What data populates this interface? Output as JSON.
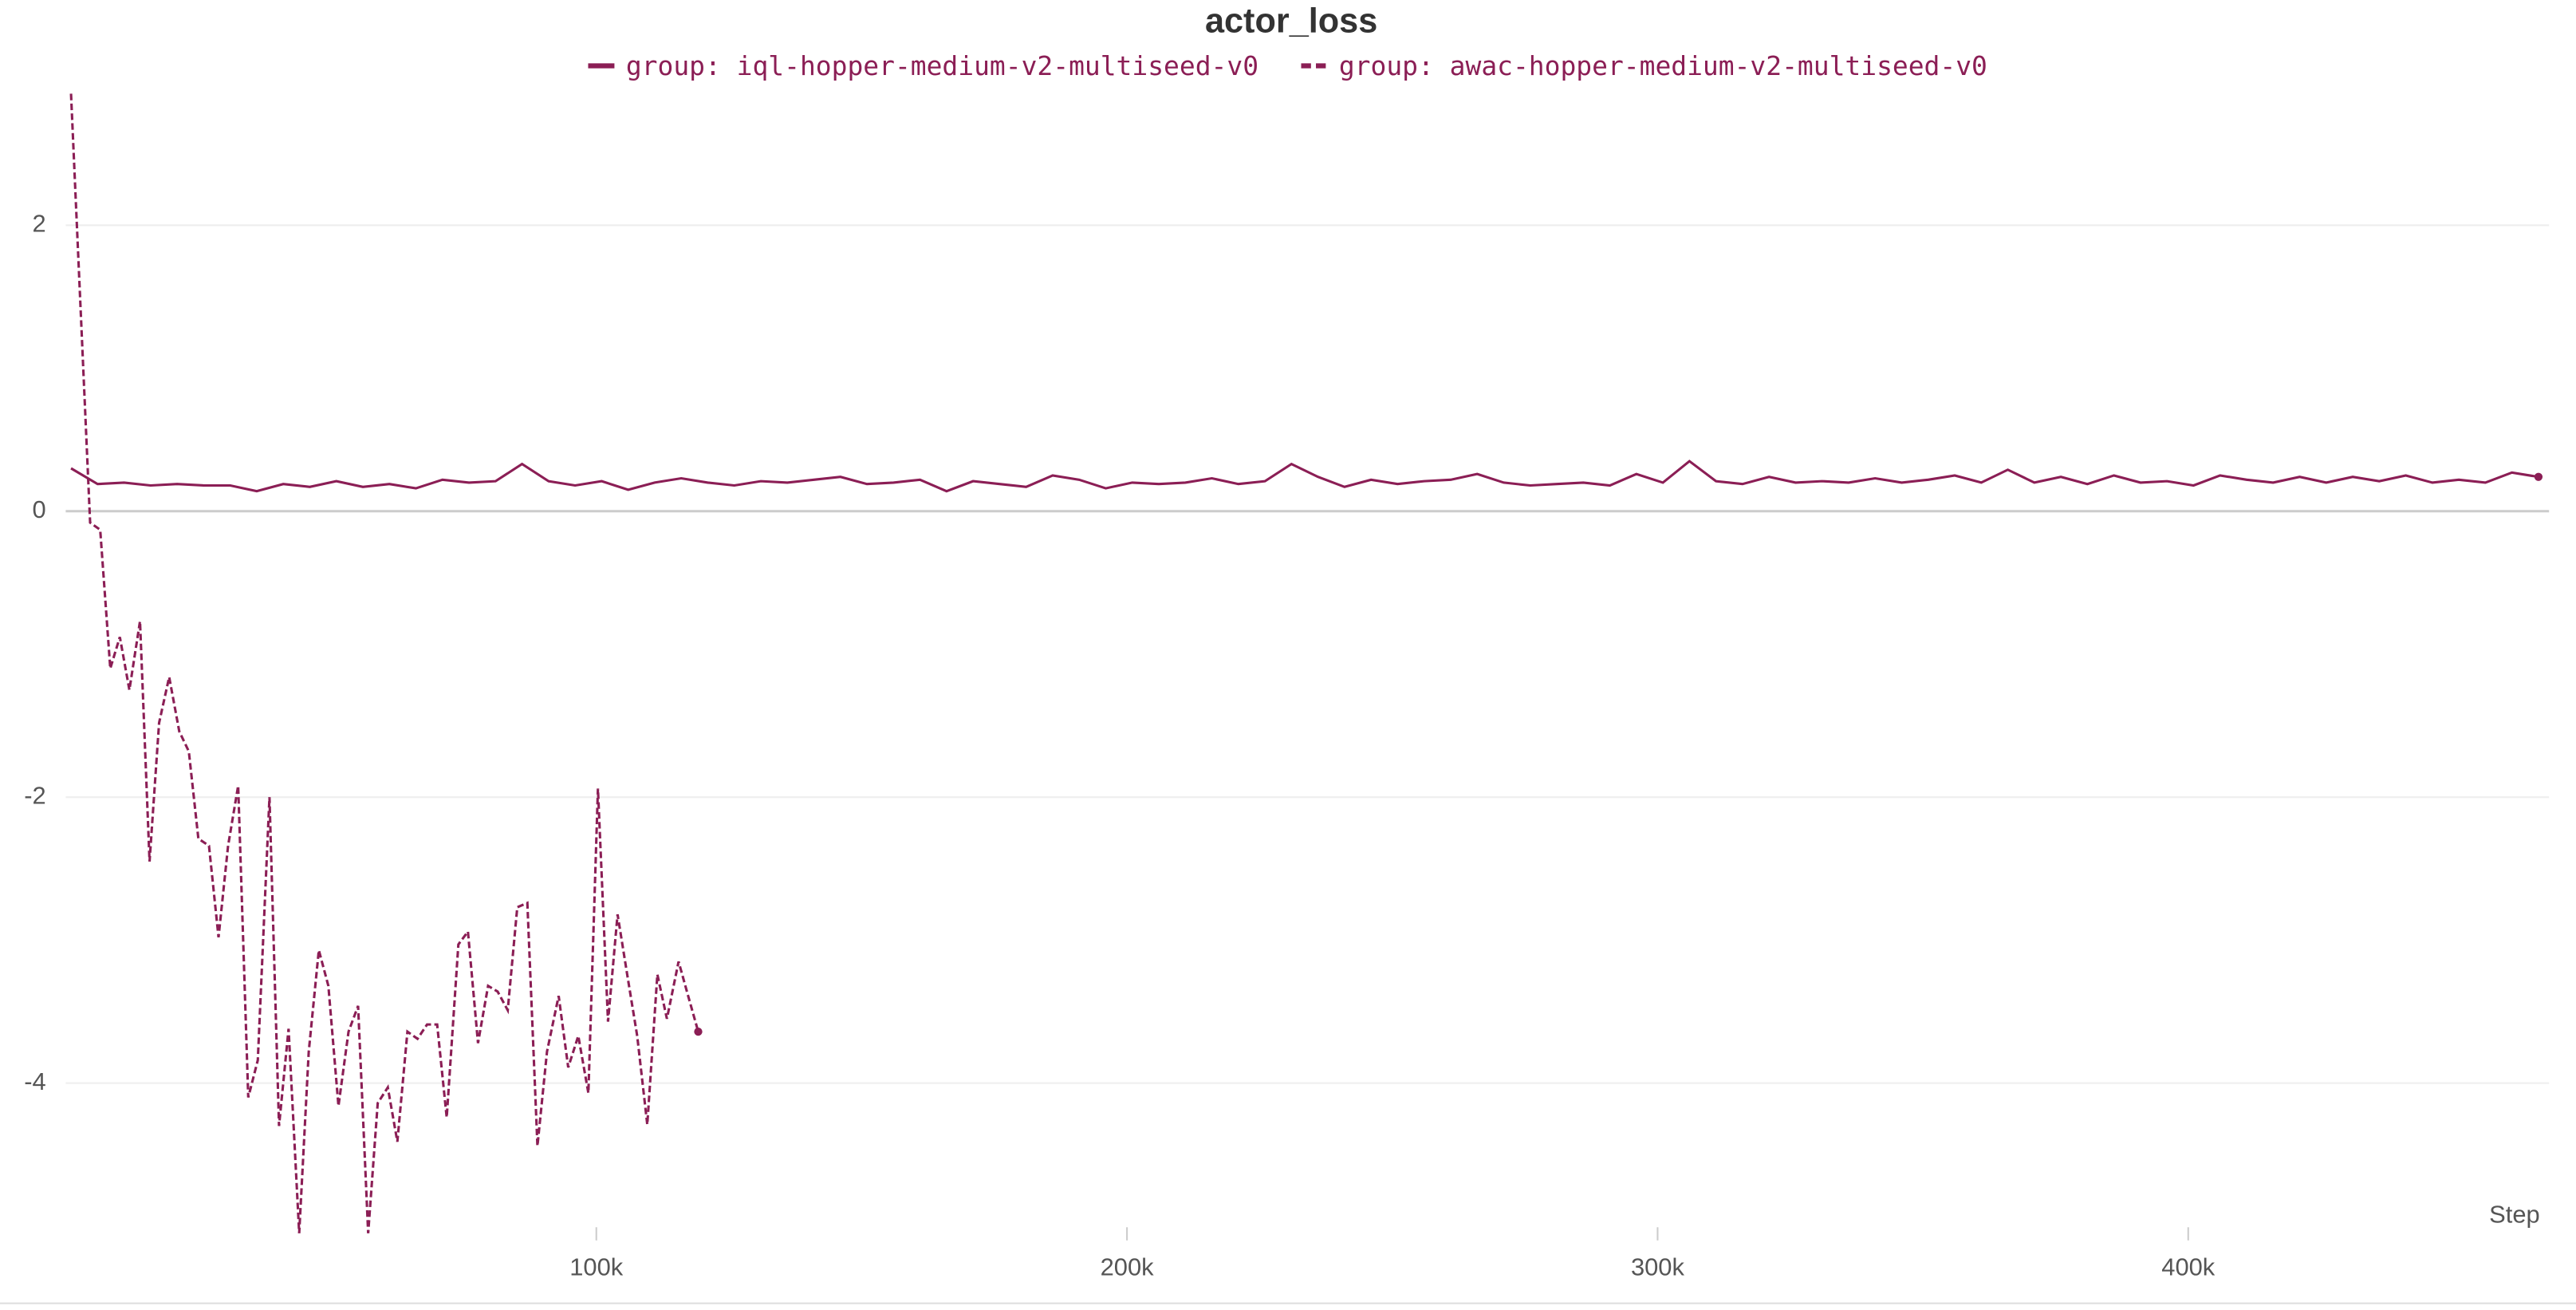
{
  "chart_data": {
    "type": "line",
    "title": "actor_loss",
    "x_label": "Step",
    "xlim": [
      0,
      468000
    ],
    "ylim": [
      -5.1,
      2.95
    ],
    "xticks": [
      {
        "value": 100000,
        "label": "100k"
      },
      {
        "value": 200000,
        "label": "200k"
      },
      {
        "value": 300000,
        "label": "300k"
      },
      {
        "value": 400000,
        "label": "400k"
      }
    ],
    "yticks": [
      -4,
      -2,
      0,
      2
    ],
    "grid": true,
    "series": [
      {
        "name": "group: iql-hopper-medium-v2-multiseed-v0",
        "color": "#8b1e55",
        "dash": "solid",
        "x": [
          1000,
          6000,
          11000,
          16000,
          21000,
          26000,
          31000,
          36000,
          41000,
          46000,
          51000,
          56000,
          61000,
          66000,
          71000,
          76000,
          81000,
          86000,
          91000,
          96000,
          101000,
          106000,
          111000,
          116000,
          121000,
          126000,
          131000,
          136000,
          141000,
          146000,
          151000,
          156000,
          161000,
          166000,
          171000,
          176000,
          181000,
          186000,
          191000,
          196000,
          201000,
          206000,
          211000,
          216000,
          221000,
          226000,
          231000,
          236000,
          241000,
          246000,
          251000,
          256000,
          261000,
          266000,
          271000,
          276000,
          281000,
          286000,
          291000,
          296000,
          301000,
          306000,
          311000,
          316000,
          321000,
          326000,
          331000,
          336000,
          341000,
          346000,
          351000,
          356000,
          361000,
          366000,
          371000,
          376000,
          381000,
          386000,
          391000,
          396000,
          401000,
          406000,
          411000,
          416000,
          421000,
          426000,
          431000,
          436000,
          441000,
          446000,
          451000,
          456000,
          461000,
          466000
        ],
        "values": [
          0.3,
          0.19,
          0.2,
          0.18,
          0.19,
          0.18,
          0.18,
          0.14,
          0.19,
          0.17,
          0.21,
          0.17,
          0.19,
          0.16,
          0.22,
          0.2,
          0.21,
          0.33,
          0.21,
          0.18,
          0.21,
          0.15,
          0.2,
          0.23,
          0.2,
          0.18,
          0.21,
          0.2,
          0.22,
          0.24,
          0.19,
          0.2,
          0.22,
          0.14,
          0.21,
          0.19,
          0.17,
          0.25,
          0.22,
          0.16,
          0.2,
          0.19,
          0.2,
          0.23,
          0.19,
          0.21,
          0.33,
          0.24,
          0.17,
          0.22,
          0.19,
          0.21,
          0.22,
          0.26,
          0.2,
          0.18,
          0.19,
          0.2,
          0.18,
          0.26,
          0.2,
          0.35,
          0.21,
          0.19,
          0.24,
          0.2,
          0.21,
          0.2,
          0.23,
          0.2,
          0.22,
          0.25,
          0.2,
          0.29,
          0.2,
          0.24,
          0.19,
          0.25,
          0.2,
          0.21,
          0.18,
          0.25,
          0.22,
          0.2,
          0.24,
          0.2,
          0.24,
          0.21,
          0.25,
          0.2,
          0.22,
          0.2,
          0.27,
          0.24
        ]
      },
      {
        "name": "group: awac-hopper-medium-v2-multiseed-v0",
        "color": "#8b1e55",
        "dash": "dashed",
        "x": [
          1000,
          4600,
          6500,
          8400,
          10200,
          12000,
          14000,
          15800,
          17600,
          19500,
          21400,
          23200,
          25000,
          27000,
          28800,
          30600,
          32500,
          34400,
          36200,
          38400,
          40200,
          42000,
          44000,
          45800,
          47700,
          49500,
          51400,
          53300,
          55100,
          57000,
          58800,
          60700,
          62500,
          64400,
          66300,
          68100,
          70000,
          71800,
          74000,
          75800,
          77700,
          79600,
          81400,
          83300,
          85100,
          87000,
          88900,
          90700,
          92900,
          94700,
          96600,
          98500,
          100300,
          102200,
          104000,
          105900,
          107700,
          109600,
          111500,
          113300,
          115500,
          117300,
          119200
        ],
        "values": [
          2.92,
          -0.08,
          -0.13,
          -1.1,
          -0.88,
          -1.25,
          -0.77,
          -2.45,
          -1.48,
          -1.16,
          -1.54,
          -1.68,
          -2.29,
          -2.34,
          -2.98,
          -2.34,
          -1.92,
          -4.1,
          -3.84,
          -2.0,
          -4.3,
          -3.62,
          -5.05,
          -3.78,
          -3.07,
          -3.32,
          -4.16,
          -3.64,
          -3.46,
          -5.05,
          -4.14,
          -4.03,
          -4.41,
          -3.64,
          -3.69,
          -3.59,
          -3.59,
          -4.24,
          -3.03,
          -2.94,
          -3.72,
          -3.32,
          -3.36,
          -3.49,
          -2.77,
          -2.74,
          -4.44,
          -3.78,
          -3.39,
          -3.89,
          -3.67,
          -4.07,
          -1.94,
          -3.57,
          -2.82,
          -3.26,
          -3.67,
          -4.29,
          -3.24,
          -3.55,
          -3.15,
          -3.39,
          -3.64
        ]
      }
    ]
  }
}
